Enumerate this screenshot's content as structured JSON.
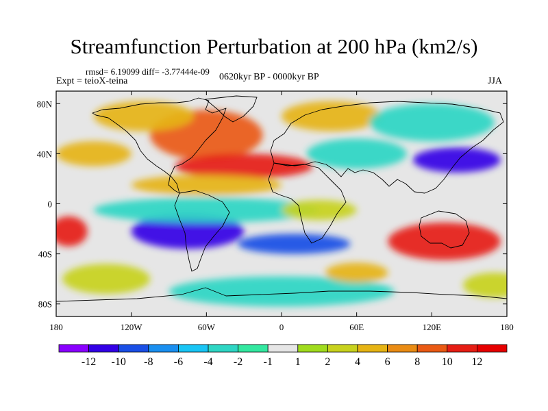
{
  "figure": {
    "title": "Streamfunction Perturbation at 200 hPa (km2/s)",
    "stats": "rmsd= 6.19099 diff= -3.77444e-09",
    "experiment": "Expt = teioX-teina",
    "period": "0620kyr BP - 0000kyr BP",
    "season": "JJA"
  },
  "map": {
    "projection": "cylindrical equidistant",
    "lon_range": [
      -180,
      180
    ],
    "lat_range": [
      -90,
      90
    ],
    "lon_ticks": [
      {
        "value": -180,
        "label": "180"
      },
      {
        "value": -120,
        "label": "120W"
      },
      {
        "value": -60,
        "label": "60W"
      },
      {
        "value": 0,
        "label": "0"
      },
      {
        "value": 60,
        "label": "60E"
      },
      {
        "value": 120,
        "label": "120E"
      },
      {
        "value": 180,
        "label": "180"
      }
    ],
    "lat_ticks": [
      {
        "value": 80,
        "label": "80N"
      },
      {
        "value": 40,
        "label": "40N"
      },
      {
        "value": 0,
        "label": "0"
      },
      {
        "value": -40,
        "label": "40S"
      },
      {
        "value": -80,
        "label": "80S"
      }
    ],
    "background_color": "#e6e6e6"
  },
  "colorbar": {
    "labels": [
      "-12",
      "-10",
      "-8",
      "-6",
      "-4",
      "-2",
      "-1",
      "1",
      "2",
      "4",
      "6",
      "8",
      "10",
      "12"
    ],
    "colors": [
      "#8a00ff",
      "#3300e6",
      "#1a4fe6",
      "#1a8ff0",
      "#19c5f5",
      "#2ed6c4",
      "#33e8a0",
      "#e6e6e6",
      "#a0dc1e",
      "#c8d21e",
      "#e6b414",
      "#ea8c14",
      "#ea5a14",
      "#e61e14",
      "#e60000"
    ]
  },
  "field_anomalies": [
    {
      "lon": -60,
      "lat": 55,
      "value": 9,
      "rx": 45,
      "ry": 20
    },
    {
      "lon": -110,
      "lat": 70,
      "value": 5,
      "rx": 40,
      "ry": 12
    },
    {
      "lon": -150,
      "lat": 40,
      "value": 5,
      "rx": 30,
      "ry": 10
    },
    {
      "lon": -30,
      "lat": 30,
      "value": 11,
      "rx": 55,
      "ry": 10
    },
    {
      "lon": 40,
      "lat": 70,
      "value": 4,
      "rx": 40,
      "ry": 12
    },
    {
      "lon": 60,
      "lat": 40,
      "value": -3,
      "rx": 40,
      "ry": 12
    },
    {
      "lon": 140,
      "lat": 35,
      "value": -12,
      "rx": 35,
      "ry": 10
    },
    {
      "lon": 120,
      "lat": 65,
      "value": -3,
      "rx": 50,
      "ry": 15
    },
    {
      "lon": -170,
      "lat": -22,
      "value": 11,
      "rx": 15,
      "ry": 12
    },
    {
      "lon": -60,
      "lat": 15,
      "value": 5,
      "rx": 60,
      "ry": 8
    },
    {
      "lon": -75,
      "lat": -22,
      "value": -12,
      "rx": 45,
      "ry": 14
    },
    {
      "lon": 10,
      "lat": -32,
      "value": -10,
      "rx": 45,
      "ry": 8
    },
    {
      "lon": -60,
      "lat": -5,
      "value": -3,
      "rx": 90,
      "ry": 10
    },
    {
      "lon": 130,
      "lat": -30,
      "value": 11,
      "rx": 45,
      "ry": 15
    },
    {
      "lon": 30,
      "lat": -5,
      "value": 2,
      "rx": 30,
      "ry": 8
    },
    {
      "lon": 0,
      "lat": -70,
      "value": -3,
      "rx": 90,
      "ry": 12
    },
    {
      "lon": 60,
      "lat": -55,
      "value": 5,
      "rx": 25,
      "ry": 8
    },
    {
      "lon": -140,
      "lat": -60,
      "value": 3,
      "rx": 35,
      "ry": 12
    },
    {
      "lon": 170,
      "lat": -65,
      "value": 3,
      "rx": 25,
      "ry": 10
    }
  ]
}
